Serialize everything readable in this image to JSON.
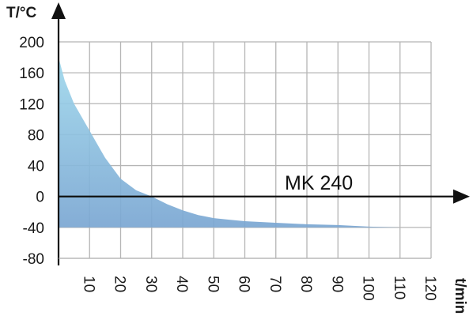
{
  "chart_data": {
    "type": "area",
    "title": "",
    "xlabel": "t/min",
    "ylabel": "T/°C",
    "annotation": "MK 240",
    "xlim": [
      0,
      120
    ],
    "ylim": [
      -80,
      200
    ],
    "x_ticks": [
      "10",
      "20",
      "30",
      "40",
      "50",
      "60",
      "70",
      "80",
      "90",
      "100",
      "110",
      "120"
    ],
    "y_ticks": [
      "200",
      "160",
      "120",
      "80",
      "40",
      "0",
      "-40",
      "-80"
    ],
    "grid": true,
    "fill_base": -40,
    "colors": {
      "area_top": "#9fd8ec",
      "area_bottom": "#7aa6d2",
      "grid": "#b5b5b5",
      "axis": "#111111"
    },
    "series": [
      {
        "x": [
          0,
          2,
          5,
          10,
          15,
          20,
          25,
          30,
          35,
          40,
          45,
          50,
          55,
          60,
          70,
          80,
          90,
          100,
          110
        ],
        "values": [
          180,
          150,
          120,
          85,
          50,
          23,
          8,
          0,
          -10,
          -18,
          -24,
          -28,
          -30,
          -32,
          -34,
          -36,
          -37,
          -39,
          -40
        ]
      }
    ]
  }
}
